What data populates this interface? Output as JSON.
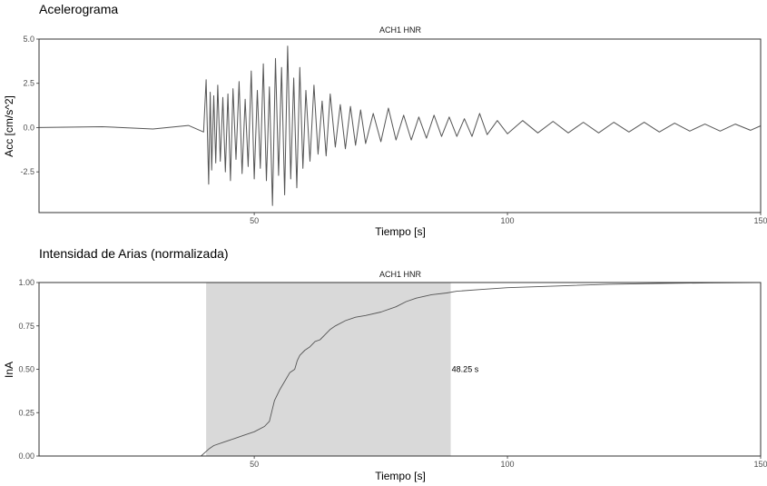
{
  "chart_data": [
    {
      "type": "line",
      "title": "Acelerograma",
      "facet": "ACH1 HNR",
      "xlabel": "Tiempo [s]",
      "ylabel": "Acc [cm/s^2]",
      "xlim": [
        7.5,
        150
      ],
      "ylim": [
        -4.8,
        5.0
      ],
      "x_ticks": [
        50,
        100,
        150
      ],
      "x_tick_labels": [
        "50",
        "100",
        "150"
      ],
      "y_ticks": [
        5.0,
        2.5,
        0.0,
        -2.5
      ],
      "y_tick_labels": [
        "5.0",
        "2.5",
        "0.0",
        "-2.5"
      ],
      "grid": false,
      "line_color": "#555555",
      "series": [
        {
          "x": [
            7.5,
            20,
            30,
            37,
            40,
            40.5,
            41.0,
            41.3,
            41.6,
            42.0,
            42.4,
            42.8,
            43.3,
            43.8,
            44.3,
            44.8,
            45.3,
            45.8,
            46.4,
            47.0,
            47.6,
            48.2,
            48.8,
            49.4,
            50.0,
            50.6,
            51.2,
            51.8,
            52.4,
            53.0,
            53.6,
            54.2,
            54.8,
            55.4,
            56.0,
            56.6,
            57.2,
            57.8,
            58.4,
            59.0,
            59.6,
            60.2,
            61.0,
            61.8,
            62.6,
            63.4,
            64.2,
            65.0,
            66.0,
            67.0,
            68.0,
            69.0,
            70.0,
            71.0,
            72.0,
            73.5,
            75.0,
            76.5,
            78.0,
            79.5,
            81.0,
            82.5,
            84.0,
            85.5,
            87.0,
            88.5,
            90.0,
            91.5,
            93.0,
            94.5,
            96.0,
            98.0,
            100.0,
            103.0,
            106.0,
            109.0,
            112.0,
            115.0,
            118.0,
            121.0,
            124.0,
            127.0,
            130.0,
            133.0,
            136.0,
            139.0,
            142.0,
            145.0,
            148.0,
            150.0
          ],
          "y": [
            0.0,
            0.05,
            -0.08,
            0.12,
            -0.25,
            2.7,
            -3.2,
            2.0,
            -2.4,
            1.8,
            -2.0,
            2.4,
            -1.9,
            1.7,
            -2.5,
            1.9,
            -3.0,
            2.2,
            -1.8,
            2.6,
            -2.6,
            1.6,
            -2.2,
            3.2,
            -2.9,
            2.1,
            -2.3,
            3.6,
            -3.0,
            2.3,
            -4.4,
            3.9,
            -2.7,
            3.4,
            -3.8,
            4.6,
            -2.9,
            2.8,
            -3.4,
            3.4,
            -2.3,
            2.1,
            -1.9,
            2.4,
            -1.5,
            1.5,
            -1.6,
            1.9,
            -1.1,
            1.3,
            -1.2,
            1.2,
            -1.0,
            1.0,
            -0.9,
            0.8,
            -0.8,
            1.1,
            -0.7,
            0.7,
            -0.7,
            0.6,
            -0.6,
            0.7,
            -0.5,
            0.6,
            -0.5,
            0.5,
            -0.5,
            0.8,
            -0.4,
            0.4,
            -0.35,
            0.4,
            -0.3,
            0.35,
            -0.3,
            0.3,
            -0.3,
            0.3,
            -0.25,
            0.3,
            -0.25,
            0.25,
            -0.2,
            0.2,
            -0.2,
            0.2,
            -0.15,
            0.1
          ]
        }
      ]
    },
    {
      "type": "line",
      "title": "Intensidad de Arias (normalizada)",
      "facet": "ACH1 HNR",
      "xlabel": "Tiempo [s]",
      "ylabel": "InA",
      "xlim": [
        7.5,
        150
      ],
      "ylim": [
        0,
        1.0
      ],
      "x_ticks": [
        50,
        100,
        150
      ],
      "x_tick_labels": [
        "50",
        "100",
        "150"
      ],
      "y_ticks": [
        1.0,
        0.75,
        0.5,
        0.25,
        0.0
      ],
      "y_tick_labels": [
        "1.00",
        "0.75",
        "0.50",
        "0.25",
        "0.00"
      ],
      "grid": false,
      "line_color": "#555555",
      "shaded_region": {
        "x_start": 40.5,
        "x_end": 88.8,
        "color": "#d9d9d9"
      },
      "annotation": {
        "text": "48.25 s",
        "x": 89.0,
        "y": 0.5
      },
      "series": [
        {
          "x": [
            7.5,
            39.5,
            41.0,
            42.0,
            44.0,
            46.0,
            48.0,
            50.0,
            52.0,
            53.0,
            53.5,
            54.0,
            55.0,
            56.0,
            57.0,
            58.0,
            58.5,
            59.0,
            60.0,
            61.0,
            62.0,
            63.0,
            64.0,
            65.0,
            66.0,
            68.0,
            70.0,
            72.0,
            75.0,
            78.0,
            80.0,
            82.0,
            85.0,
            88.0,
            90.0,
            95.0,
            100.0,
            110.0,
            120.0,
            130.0,
            140.0,
            150.0
          ],
          "y": [
            0.0,
            0.0,
            0.04,
            0.06,
            0.08,
            0.1,
            0.12,
            0.14,
            0.17,
            0.2,
            0.26,
            0.32,
            0.38,
            0.43,
            0.48,
            0.5,
            0.55,
            0.58,
            0.61,
            0.63,
            0.66,
            0.67,
            0.7,
            0.73,
            0.75,
            0.78,
            0.8,
            0.81,
            0.83,
            0.86,
            0.89,
            0.91,
            0.93,
            0.94,
            0.95,
            0.96,
            0.97,
            0.98,
            0.99,
            0.995,
            0.998,
            1.0
          ]
        }
      ]
    }
  ]
}
